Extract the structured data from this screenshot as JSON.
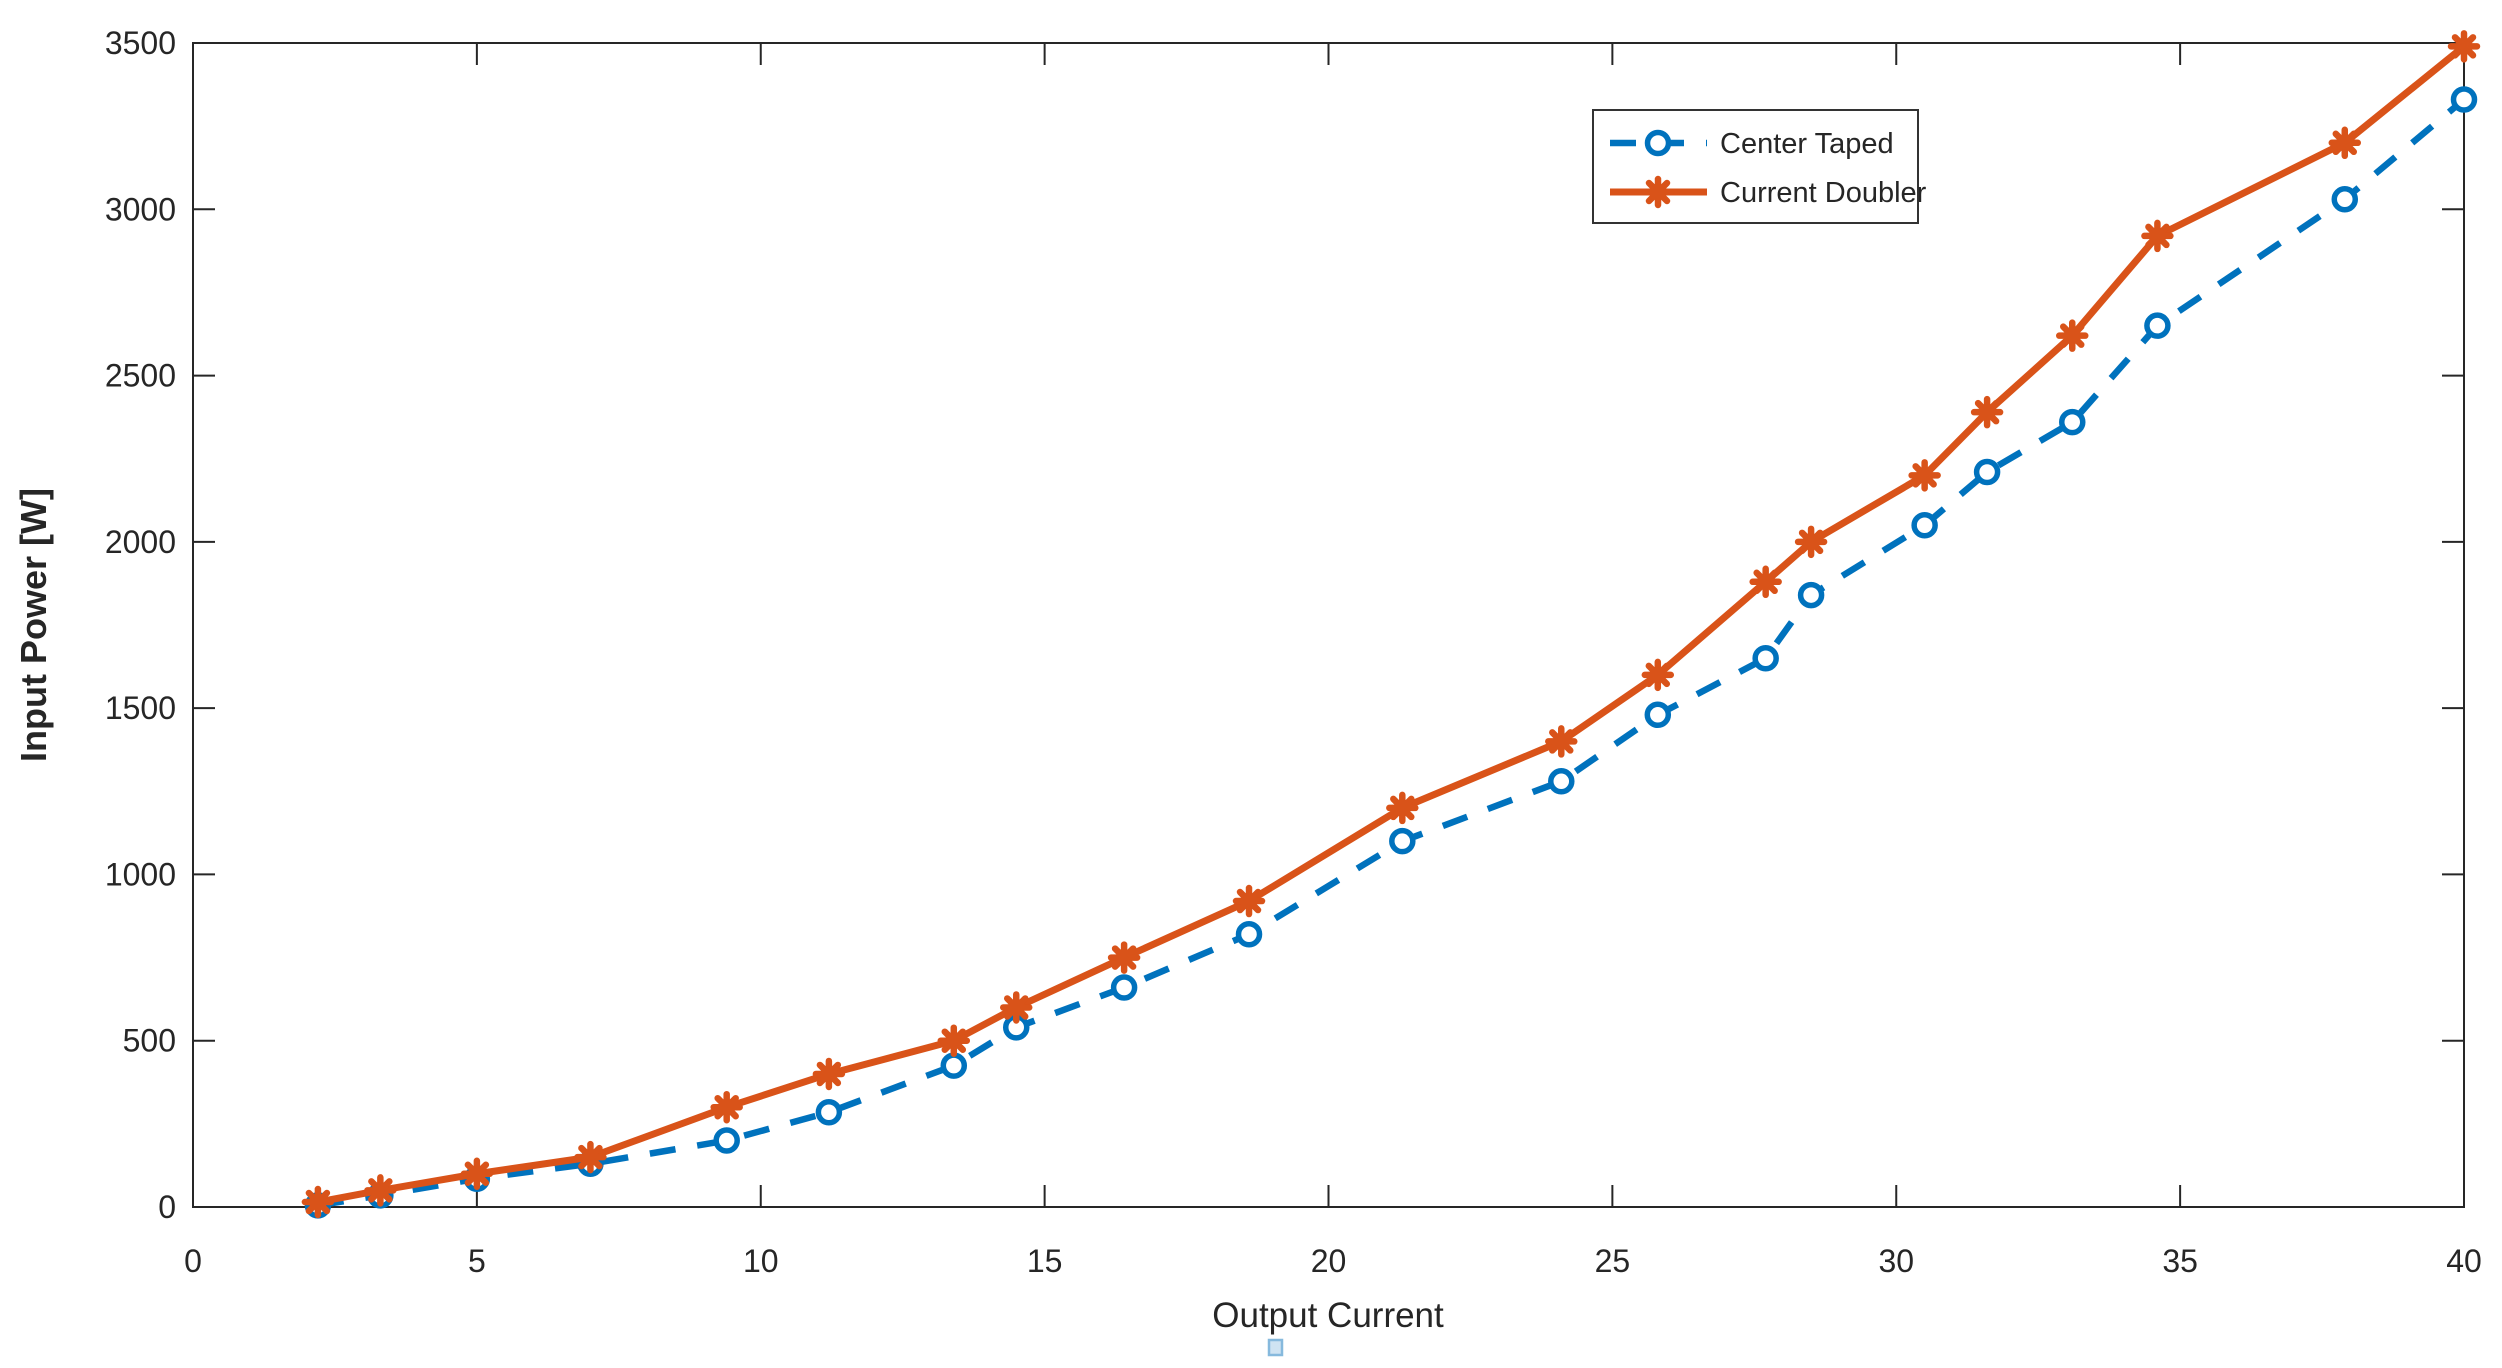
{
  "figure": {
    "background": "#ffffff",
    "axis_color": "#262626",
    "caret_artifact": {
      "fill": "#cfe3f2",
      "border": "#86b9dd"
    }
  },
  "chart_data": {
    "type": "line",
    "title": "",
    "xlabel": "Output Current",
    "ylabel": "Input Power [W]",
    "xlim": [
      0,
      40
    ],
    "ylim": [
      0,
      3500
    ],
    "xticks": [
      0,
      5,
      10,
      15,
      20,
      25,
      30,
      35,
      40
    ],
    "yticks": [
      0,
      500,
      1000,
      1500,
      2000,
      2500,
      3000,
      3500
    ],
    "grid": false,
    "legend_position": "top-right",
    "x": [
      2.2,
      3.3,
      5.0,
      7.0,
      9.4,
      11.2,
      13.4,
      14.5,
      16.4,
      18.6,
      21.3,
      24.1,
      25.8,
      27.7,
      28.5,
      30.5,
      31.6,
      33.1,
      34.6,
      37.9,
      40.0
    ],
    "series": [
      {
        "name": "Center Taped",
        "color": "#0072BD",
        "line_style": "dashed",
        "marker": "circle",
        "values": [
          5,
          35,
          85,
          130,
          200,
          285,
          425,
          540,
          660,
          820,
          1100,
          1280,
          1480,
          1650,
          1840,
          2050,
          2210,
          2360,
          2650,
          3030,
          3330
        ]
      },
      {
        "name": "Current Doubler",
        "color": "#D95319",
        "line_style": "solid",
        "marker": "asterisk",
        "values": [
          15,
          50,
          100,
          150,
          300,
          400,
          500,
          600,
          750,
          920,
          1200,
          1400,
          1600,
          1880,
          2000,
          2200,
          2390,
          2620,
          2920,
          3200,
          3490
        ]
      }
    ]
  }
}
